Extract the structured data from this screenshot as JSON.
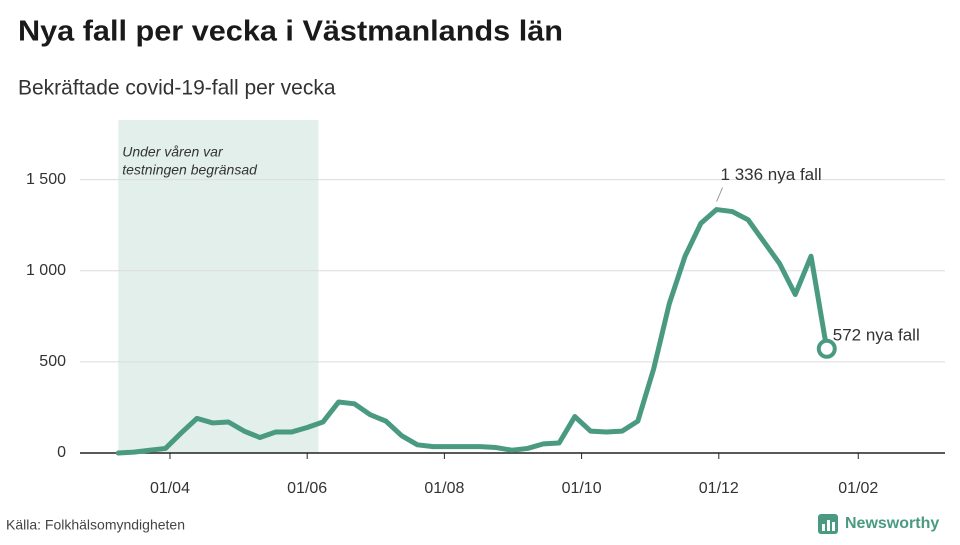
{
  "chart_data": {
    "type": "line",
    "title": "Nya fall per vecka i Västmanlands län",
    "subtitle": "Bekräftade covid-19-fall per vecka",
    "source": "Källa: Folkhälsomyndigheten",
    "brand": "Newsworthy",
    "x": [
      "09/03",
      "16/03",
      "23/03",
      "30/03",
      "06/04",
      "13/04",
      "20/04",
      "27/04",
      "04/05",
      "11/05",
      "18/05",
      "25/05",
      "01/06",
      "08/06",
      "15/06",
      "22/06",
      "29/06",
      "06/07",
      "13/07",
      "20/07",
      "27/07",
      "03/08",
      "10/08",
      "17/08",
      "24/08",
      "31/08",
      "07/09",
      "14/09",
      "21/09",
      "28/09",
      "05/10",
      "12/10",
      "19/10",
      "26/10",
      "02/11",
      "09/11",
      "16/11",
      "23/11",
      "30/11",
      "07/12",
      "14/12",
      "21/12",
      "28/12",
      "04/01",
      "11/01",
      "18/01"
    ],
    "series": [
      {
        "name": "Nya fall",
        "color": "#4a9a82",
        "values": [
          0,
          5,
          15,
          25,
          110,
          190,
          165,
          170,
          120,
          85,
          115,
          115,
          140,
          170,
          280,
          270,
          210,
          175,
          95,
          45,
          35,
          35,
          35,
          35,
          30,
          15,
          25,
          50,
          55,
          200,
          120,
          115,
          120,
          175,
          460,
          820,
          1080,
          1260,
          1336,
          1325,
          1280,
          1160,
          1040,
          870,
          1080,
          572
        ],
        "value_labels": [
          null,
          null,
          null,
          null,
          null,
          null,
          null,
          null,
          null,
          null,
          null,
          null,
          null,
          null,
          null,
          null,
          null,
          null,
          null,
          null,
          null,
          null,
          null,
          null,
          null,
          null,
          null,
          null,
          null,
          null,
          null,
          null,
          null,
          null,
          null,
          null,
          null,
          null,
          "1 336 nya fall",
          null,
          null,
          null,
          null,
          null,
          null,
          "572 nya fall"
        ]
      }
    ],
    "xlim": [
      "25/02",
      "24/02"
    ],
    "xticks": [
      "01/04",
      "01/06",
      "01/08",
      "01/10",
      "01/12",
      "01/02"
    ],
    "ylim": [
      0,
      1800
    ],
    "yticks": [
      0,
      500,
      {
        "value": 1000,
        "label": "1 000"
      },
      {
        "value": 1500,
        "label": "1 500"
      }
    ],
    "grid": true,
    "region": {
      "start": "09/03",
      "end": "06/06",
      "color": "#e3efeb",
      "label": [
        "Under våren var",
        "testningen begränsad"
      ]
    }
  }
}
